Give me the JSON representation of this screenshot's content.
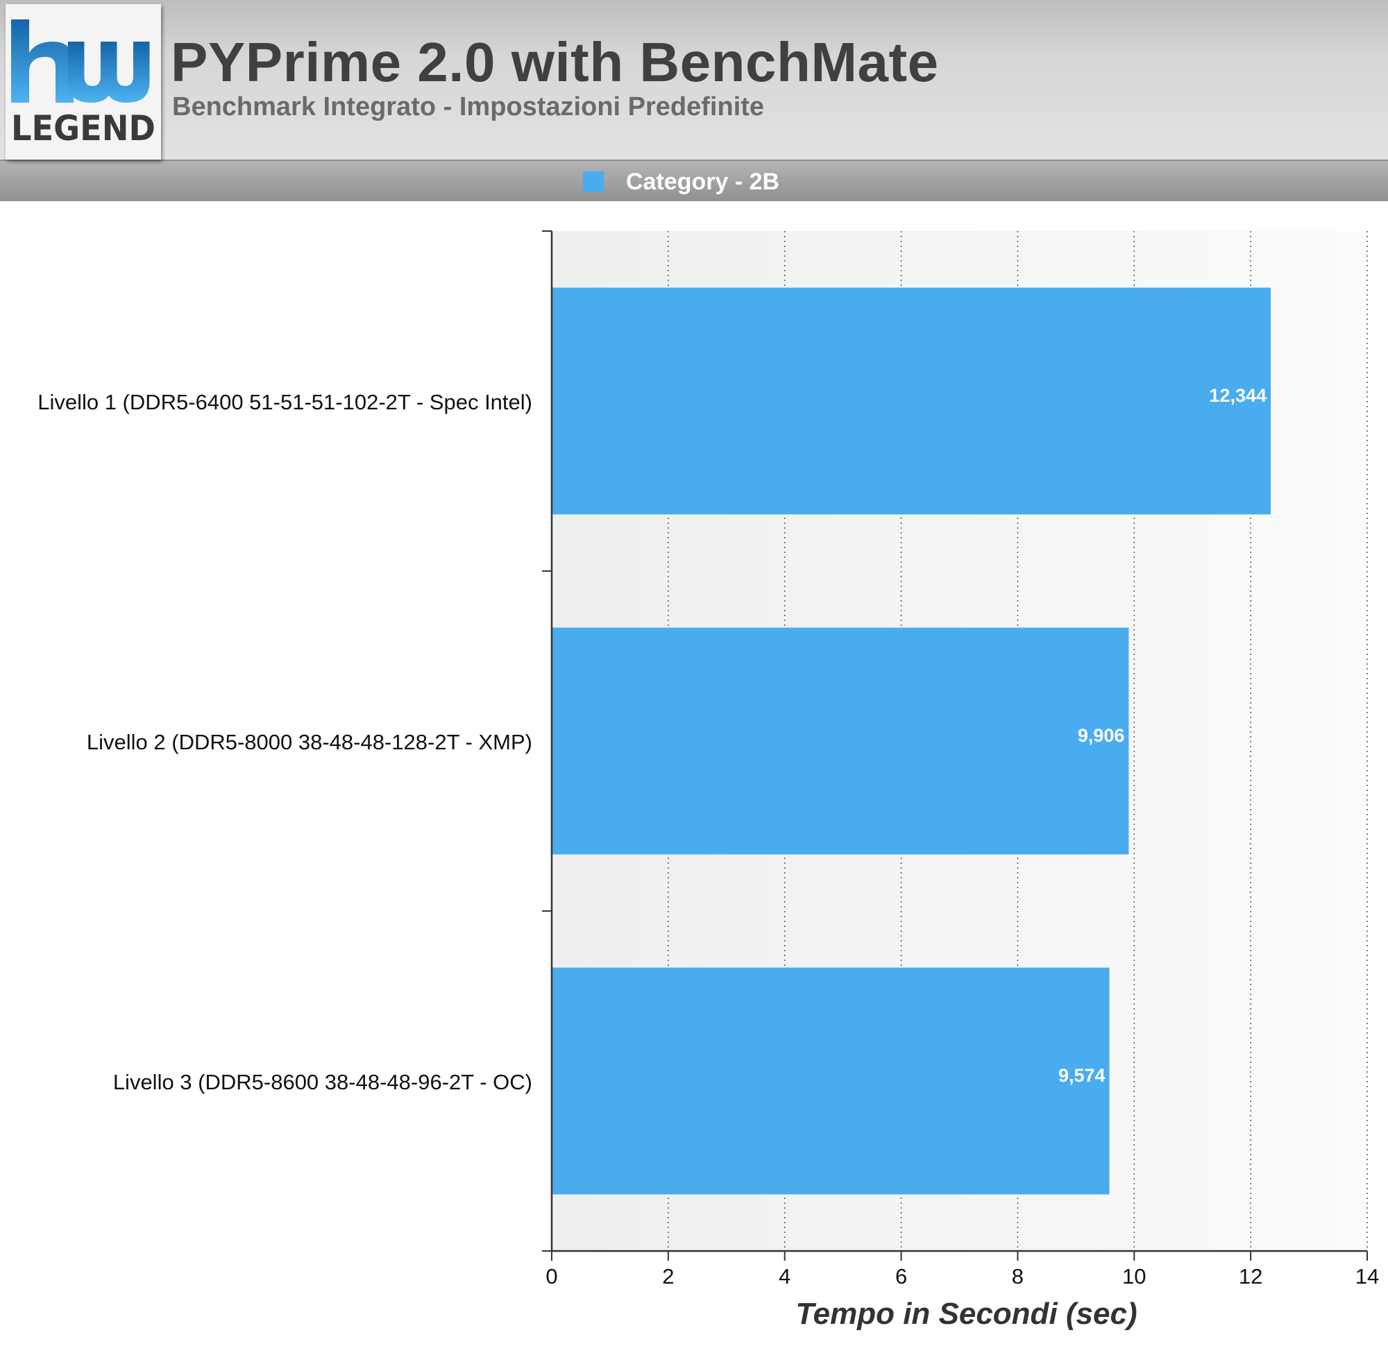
{
  "header": {
    "title": "PYPrime 2.0 with BenchMate",
    "subtitle": "Benchmark Integrato - Impostazioni Predefinite",
    "logo_text_top": "hw",
    "logo_text_bottom": "LEGEND"
  },
  "colors": {
    "bar": "#48acee",
    "plot_bg": "#f2f2f2",
    "grid": "#555555",
    "axis": "#333333",
    "logo_blue": "#1e7dc4",
    "logo_dark": "#3a3a3a"
  },
  "chart_data": {
    "type": "bar",
    "orientation": "horizontal",
    "categories": [
      "Livello 1 (DDR5-6400 51-51-51-102-2T - Spec Intel)",
      "Livello 2 (DDR5-8000 38-48-48-128-2T - XMP)",
      "Livello 3 (DDR5-8600 38-48-48-96-2T - OC)"
    ],
    "series": [
      {
        "name": "Category - 2B",
        "values": [
          12.344,
          9.906,
          9.574
        ]
      }
    ],
    "data_labels": [
      "12,344",
      "9,906",
      "9,574"
    ],
    "xlabel": "Tempo in Secondi (sec)",
    "xlim": [
      0,
      14
    ],
    "xticks": [
      0,
      2,
      4,
      6,
      8,
      10,
      12,
      14
    ],
    "grid": "vertical dotted",
    "legend": "top-center"
  }
}
